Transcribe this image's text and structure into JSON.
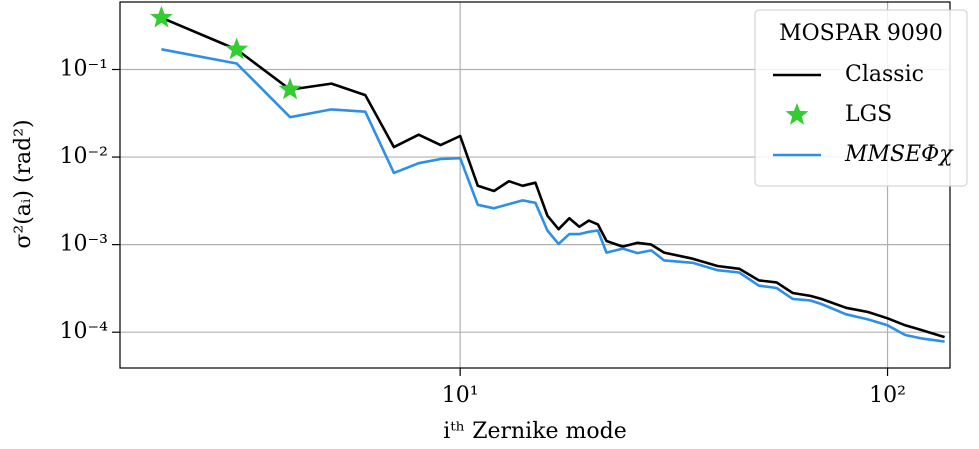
{
  "chart_data": {
    "type": "line",
    "xlabel": "iᵗʰ Zernike mode",
    "ylabel": "σ²(aᵢ) (rad²)",
    "xscale": "log",
    "yscale": "log",
    "grid": true,
    "legend": "upper right",
    "legend_title": "MOSPAR 9090",
    "xlim": [
      1.6,
      140
    ],
    "ylim": [
      3.9e-05,
      0.59
    ],
    "xticks": [
      {
        "value": 10,
        "label": "10¹"
      },
      {
        "value": 100,
        "label": "10²"
      }
    ],
    "yticks": [
      {
        "value": 0.0001,
        "label": "10⁻⁴"
      },
      {
        "value": 0.001,
        "label": "10⁻³"
      },
      {
        "value": 0.01,
        "label": "10⁻²"
      },
      {
        "value": 0.1,
        "label": "10⁻¹"
      }
    ],
    "x": [
      2,
      3,
      4,
      5,
      6,
      7,
      8,
      9,
      10,
      11,
      12,
      13,
      14,
      15,
      16,
      17,
      18,
      19,
      20,
      21,
      22,
      24,
      26,
      28,
      30,
      35,
      40,
      45,
      50,
      55,
      60,
      66,
      70,
      80,
      90,
      100,
      110,
      120,
      136
    ],
    "series": [
      {
        "name": "Classic",
        "color": "#000000",
        "values": [
          0.39,
          0.169,
          0.059,
          0.069,
          0.051,
          0.013,
          0.018,
          0.0137,
          0.0174,
          0.0047,
          0.0041,
          0.0053,
          0.0047,
          0.0051,
          0.00214,
          0.0015,
          0.002,
          0.0016,
          0.00188,
          0.0017,
          0.0011,
          0.00095,
          0.00105,
          0.001,
          0.00081,
          0.00069,
          0.00057,
          0.00053,
          0.00039,
          0.00037,
          0.00028,
          0.00026,
          0.00024,
          0.00019,
          0.00017,
          0.000144,
          0.00012,
          0.000106,
          8.8e-05
        ]
      },
      {
        "name": "LGS",
        "color": "#33cc33",
        "marker": "star",
        "x": [
          2,
          3,
          4
        ],
        "values": [
          0.39,
          0.169,
          0.059
        ]
      },
      {
        "name": "MMSEΦχ",
        "color": "#2e8fe8",
        "values": [
          0.17,
          0.117,
          0.0285,
          0.035,
          0.033,
          0.0066,
          0.0085,
          0.0095,
          0.0097,
          0.00285,
          0.0026,
          0.0029,
          0.0032,
          0.003,
          0.00145,
          0.00102,
          0.00132,
          0.00132,
          0.0014,
          0.00145,
          0.00081,
          0.0009,
          0.0008,
          0.00086,
          0.00066,
          0.00062,
          0.00051,
          0.00048,
          0.00034,
          0.00032,
          0.00024,
          0.00023,
          0.00021,
          0.00016,
          0.00014,
          0.00012,
          9.3e-05,
          8.5e-05,
          7.8e-05
        ]
      }
    ]
  }
}
